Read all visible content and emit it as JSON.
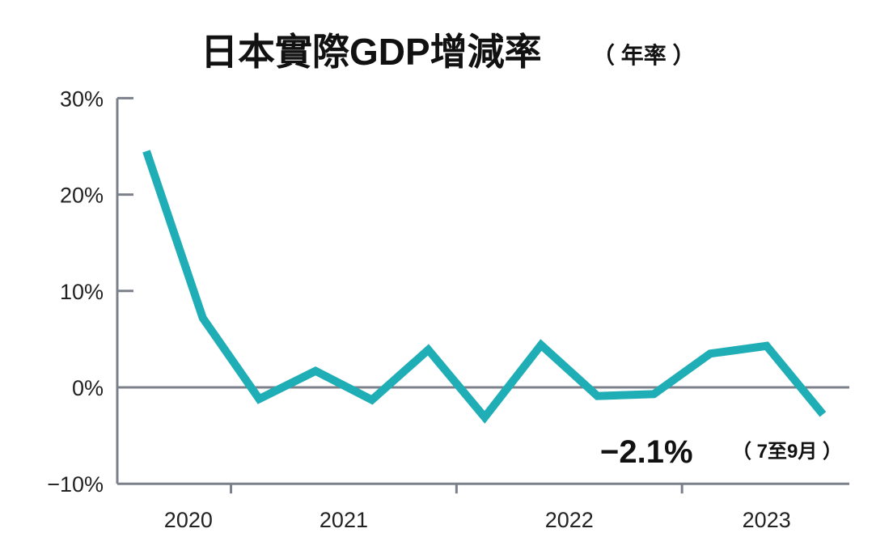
{
  "chart_data": {
    "type": "line",
    "title": "日本實際GDP增減率",
    "subtitle": "（ 年率 ）",
    "xlabel": "",
    "ylabel": "",
    "ylim": [
      -10,
      30
    ],
    "yticks": [
      30,
      20,
      10,
      0,
      -10
    ],
    "ytick_labels": [
      "30%",
      "20%",
      "10%",
      "0%",
      "−10%"
    ],
    "x_year_labels": [
      "2020",
      "2021",
      "2022",
      "2023"
    ],
    "x": [
      "2020Q3",
      "2020Q4",
      "2021Q1",
      "2021Q2",
      "2021Q3",
      "2021Q4",
      "2022Q1",
      "2022Q2",
      "2022Q3",
      "2022Q4",
      "2023Q1",
      "2023Q2",
      "2023Q3"
    ],
    "series": [
      {
        "values": [
          24.5,
          7.2,
          -1.2,
          1.7,
          -1.3,
          3.9,
          -3.1,
          4.4,
          -0.9,
          -0.7,
          3.5,
          4.3,
          -2.1
        ],
        "color": "#1fadb6"
      }
    ],
    "annotation": {
      "value": "−2.1%",
      "note": "（ 7至9月 ）"
    },
    "grid": false,
    "axis_color": "#7b808a"
  }
}
